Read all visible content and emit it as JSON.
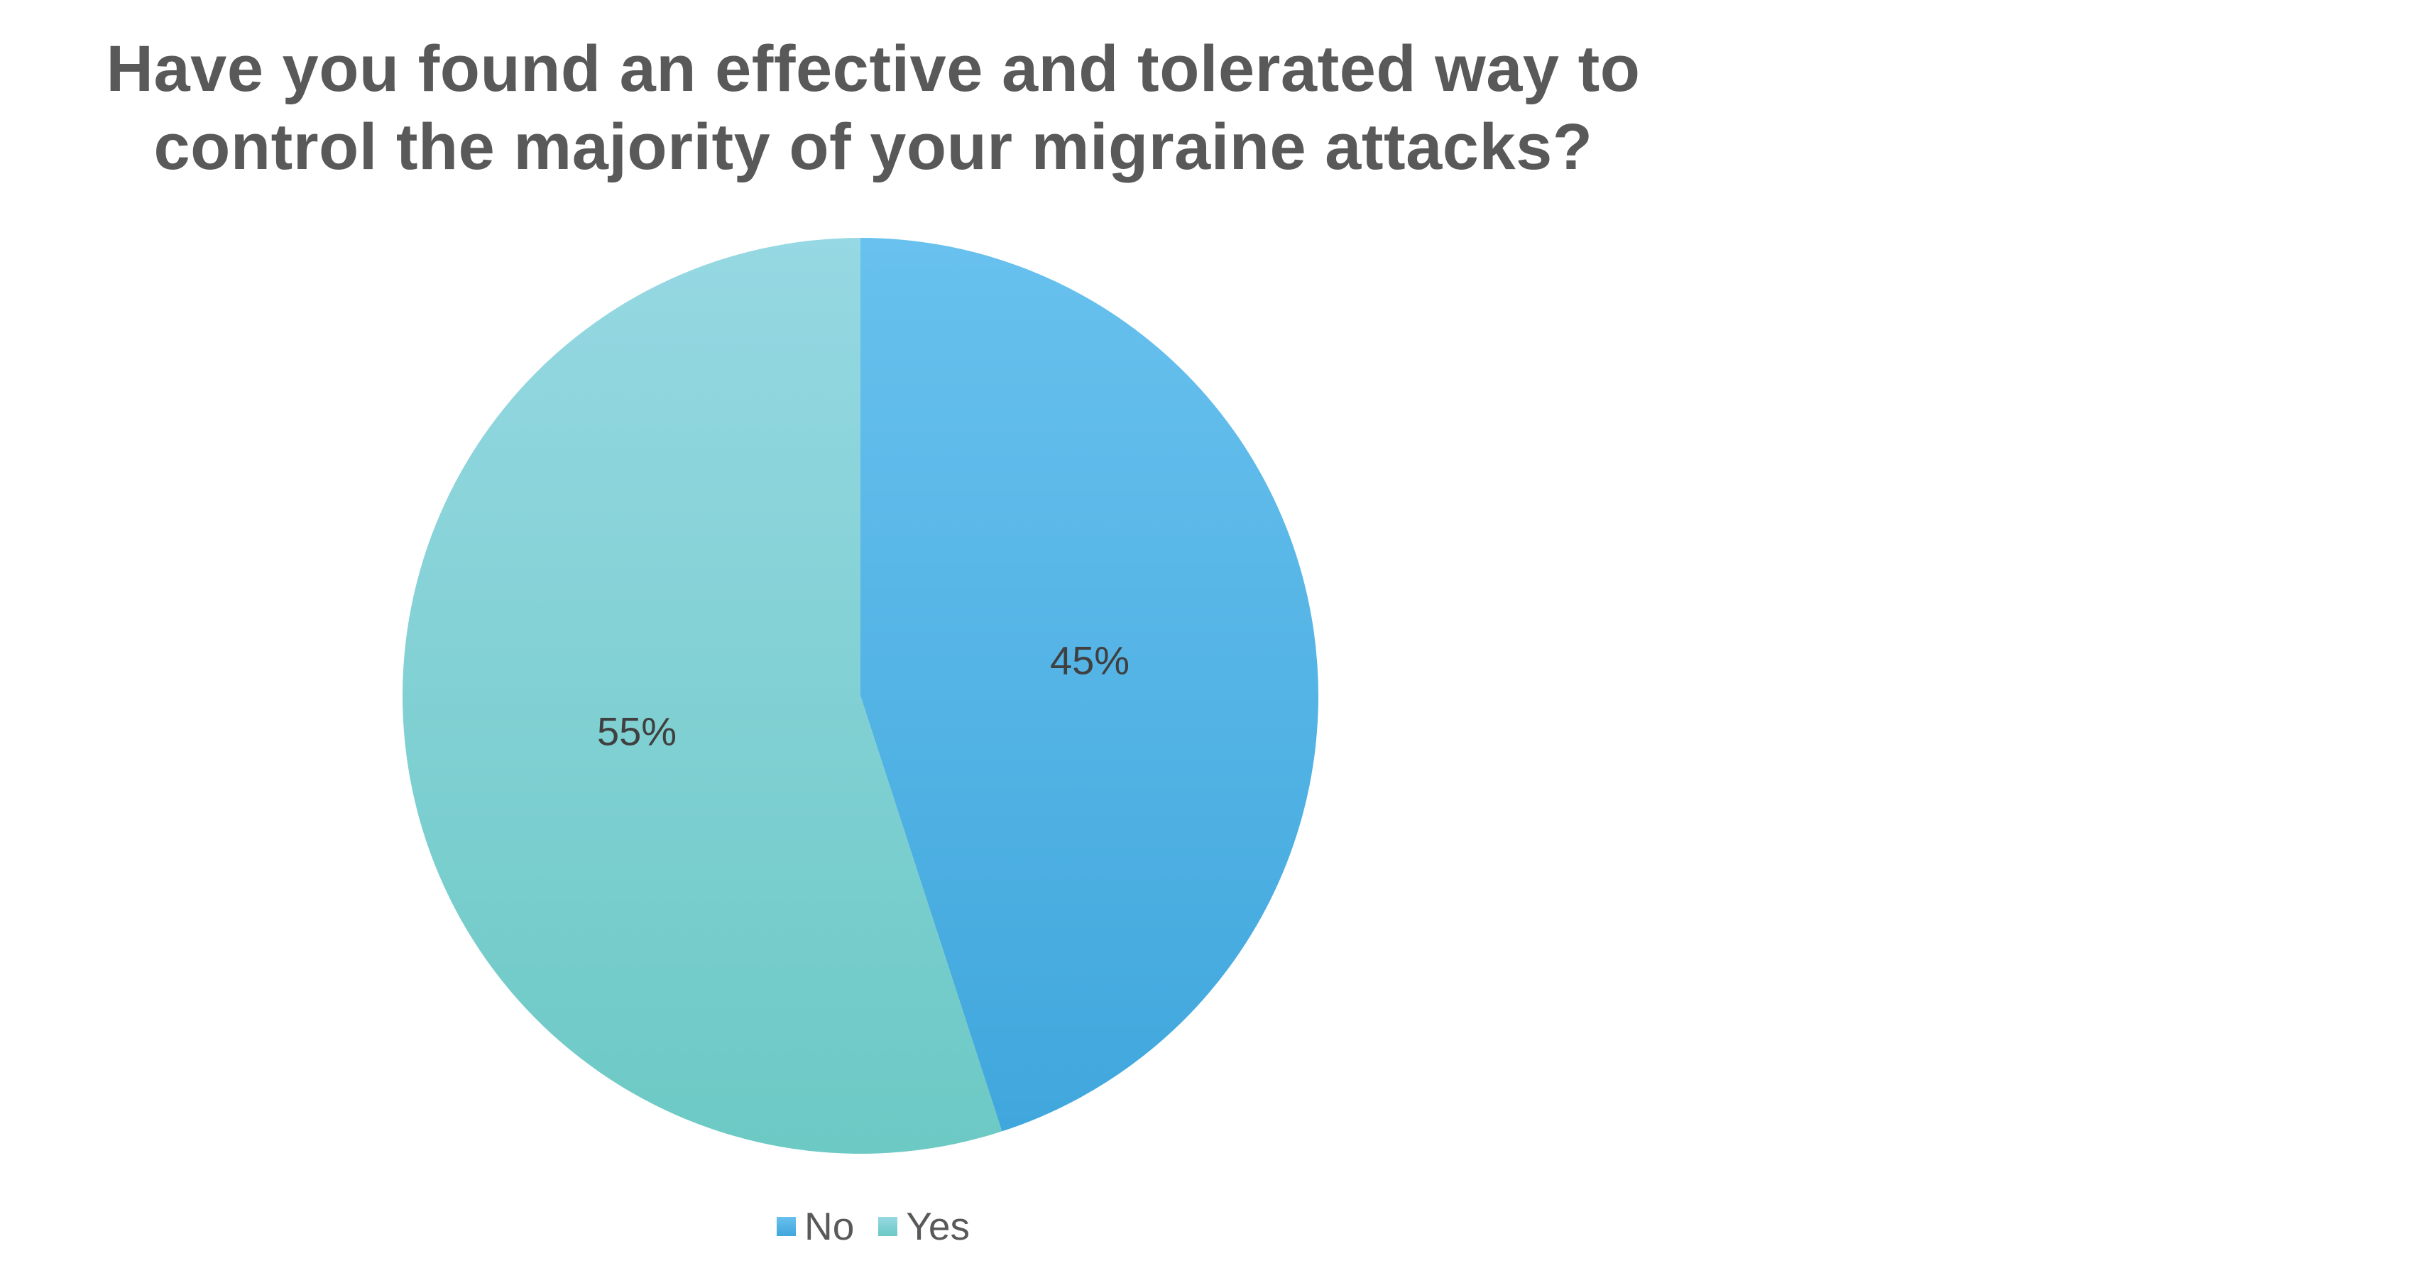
{
  "chart_data": {
    "type": "pie",
    "title": "Have you found an effective and tolerated way to control the majority of your migraine attacks?",
    "title_lines": [
      "Have you found an effective and tolerated way to",
      "control the majority of your migraine attacks?"
    ],
    "categories": [
      "No",
      "Yes"
    ],
    "values": [
      45,
      55
    ],
    "slices": [
      {
        "label": "No",
        "value": 45,
        "display": "45%",
        "color_top": "#68C1EE",
        "color_bottom": "#3FA6DC"
      },
      {
        "label": "Yes",
        "value": 55,
        "display": "55%",
        "color_top": "#96D8E3",
        "color_bottom": "#6CC9C4"
      }
    ],
    "start_angle_deg": 0,
    "direction": "clockwise",
    "data_labels": "percent-inside",
    "legend_position": "bottom",
    "grid": "off"
  },
  "colors": {
    "background": "#FFFFFF",
    "title_text": "#595959",
    "data_label_text": "#404040",
    "legend_text": "#595959"
  }
}
